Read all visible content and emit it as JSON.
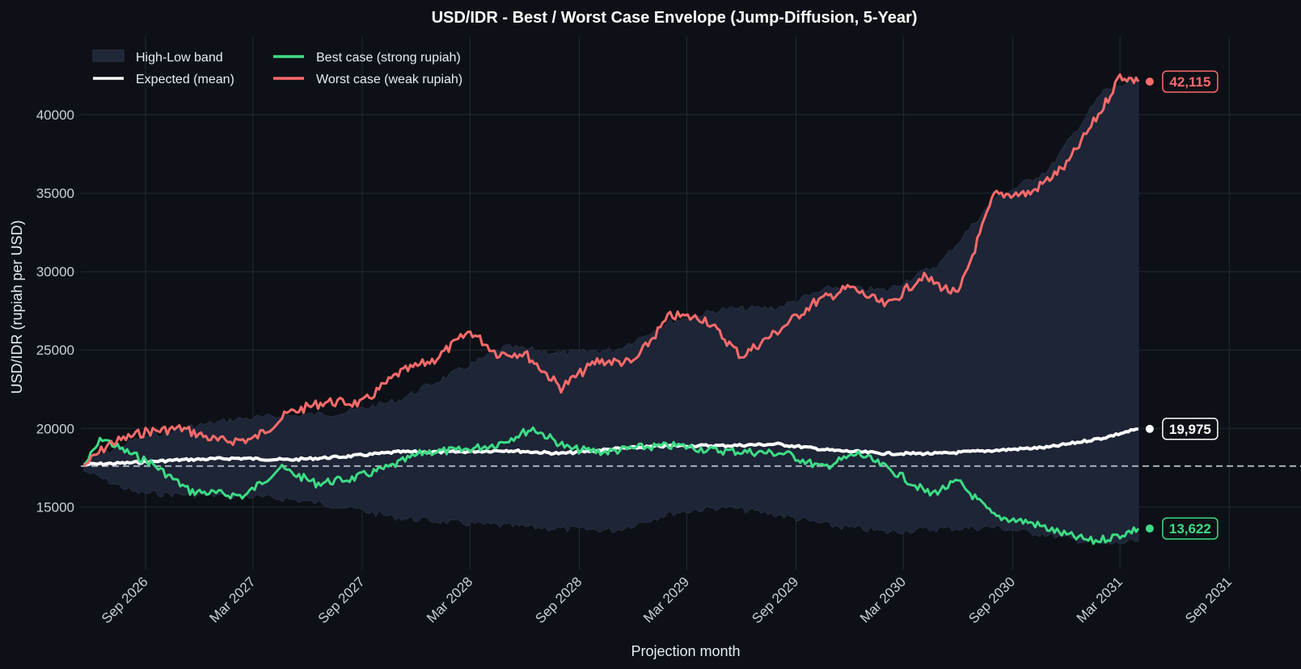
{
  "chart_data": {
    "type": "line",
    "title": "USD/IDR  -  Best / Worst Case Envelope  (Jump-Diffusion, 5-Year)",
    "xlabel": "Projection month",
    "ylabel": "USD/IDR (rupiah per USD)",
    "x_range": [
      "2026-05-15",
      "2031-12-31"
    ],
    "ylim": [
      11000,
      45000
    ],
    "x_ticks": [
      {
        "date": "2026-09-01",
        "label": "Sep 2026"
      },
      {
        "date": "2027-03-01",
        "label": "Mar 2027"
      },
      {
        "date": "2027-09-01",
        "label": "Sep 2027"
      },
      {
        "date": "2028-03-01",
        "label": "Mar 2028"
      },
      {
        "date": "2028-09-01",
        "label": "Sep 2028"
      },
      {
        "date": "2029-03-01",
        "label": "Mar 2029"
      },
      {
        "date": "2029-09-01",
        "label": "Sep 2029"
      },
      {
        "date": "2030-03-01",
        "label": "Mar 2030"
      },
      {
        "date": "2030-09-01",
        "label": "Sep 2030"
      },
      {
        "date": "2031-03-01",
        "label": "Mar 2031"
      },
      {
        "date": "2031-09-01",
        "label": "Sep 2031"
      }
    ],
    "y_ticks": [
      15000,
      20000,
      25000,
      30000,
      35000,
      40000
    ],
    "y_tick_labels": [
      "15000",
      "20000",
      "25000",
      "30000",
      "35000",
      "40000"
    ],
    "grid": true,
    "legend_placement": "top-left",
    "reference_line": {
      "value": 17600,
      "style": "dashed"
    },
    "band": {
      "name": "High-Low band",
      "color": "#1f2738",
      "x": [
        "2026-05-20",
        "2026-08-15",
        "2026-11-01",
        "2027-02-01",
        "2027-05-01",
        "2027-08-01",
        "2027-11-01",
        "2028-02-01",
        "2028-05-01",
        "2028-08-01",
        "2028-11-01",
        "2029-02-01",
        "2029-05-01",
        "2029-08-01",
        "2029-11-01",
        "2030-02-01",
        "2030-05-01",
        "2030-08-01",
        "2030-11-01",
        "2031-02-01",
        "2031-04-01"
      ],
      "high": [
        17800,
        19300,
        20000,
        20600,
        20800,
        21000,
        21800,
        23500,
        25200,
        24800,
        25000,
        26800,
        27600,
        27700,
        29000,
        28800,
        30500,
        34600,
        36500,
        41500,
        42200
      ],
      "low": [
        17300,
        15900,
        15800,
        15700,
        15500,
        15000,
        14300,
        14000,
        13800,
        13600,
        13500,
        14600,
        15000,
        14500,
        13800,
        13400,
        13600,
        13700,
        13200,
        12600,
        12800
      ]
    },
    "series": [
      {
        "name": "Expected (mean)",
        "color": "#ffffff",
        "x": [
          "2026-05-20",
          "2026-08-01",
          "2026-11-01",
          "2027-02-01",
          "2027-05-01",
          "2027-08-01",
          "2027-11-01",
          "2028-02-01",
          "2028-05-01",
          "2028-08-01",
          "2028-11-01",
          "2029-02-01",
          "2029-05-01",
          "2029-08-01",
          "2029-11-01",
          "2030-02-01",
          "2030-05-01",
          "2030-08-01",
          "2030-11-01",
          "2031-02-01",
          "2031-04-01"
        ],
        "values": [
          17700,
          17800,
          18000,
          18100,
          18000,
          18200,
          18500,
          18500,
          18600,
          18400,
          18700,
          18900,
          18900,
          19000,
          18600,
          18400,
          18400,
          18600,
          18800,
          19400,
          19975
        ],
        "end_label": "19,975"
      },
      {
        "name": "Best case (strong rupiah)",
        "color": "#3ddc84",
        "x": [
          "2026-05-20",
          "2026-06-20",
          "2026-07-20",
          "2026-09-10",
          "2026-11-15",
          "2027-02-15",
          "2027-04-15",
          "2027-06-15",
          "2027-08-15",
          "2027-10-15",
          "2027-12-15",
          "2028-02-15",
          "2028-04-15",
          "2028-06-15",
          "2028-08-15",
          "2028-10-15",
          "2028-12-15",
          "2029-02-15",
          "2029-04-15",
          "2029-06-15",
          "2029-08-15",
          "2029-10-15",
          "2029-12-15",
          "2030-02-15",
          "2030-04-15",
          "2030-06-01",
          "2030-08-01",
          "2030-10-01",
          "2030-12-01",
          "2031-01-15",
          "2031-03-01",
          "2031-04-01"
        ],
        "values": [
          17600,
          19400,
          18700,
          17800,
          16000,
          15700,
          17500,
          16500,
          16800,
          17500,
          18500,
          18600,
          19000,
          20000,
          18700,
          18500,
          18800,
          18900,
          18600,
          18500,
          18400,
          17500,
          18400,
          17200,
          15800,
          16600,
          14400,
          14000,
          13200,
          12800,
          13200,
          13622
        ],
        "end_label": "13,622"
      },
      {
        "name": "Worst case (weak rupiah)",
        "color": "#ff6b6b",
        "x": [
          "2026-05-20",
          "2026-07-01",
          "2026-09-01",
          "2026-11-01",
          "2027-01-01",
          "2027-03-01",
          "2027-05-01",
          "2027-07-01",
          "2027-09-01",
          "2027-11-01",
          "2028-01-01",
          "2028-03-01",
          "2028-04-15",
          "2028-06-01",
          "2028-08-01",
          "2028-10-01",
          "2028-12-01",
          "2029-02-01",
          "2029-04-01",
          "2029-06-01",
          "2029-08-01",
          "2029-10-01",
          "2029-12-01",
          "2030-02-01",
          "2030-04-01",
          "2030-06-01",
          "2030-08-01",
          "2030-10-01",
          "2030-12-01",
          "2031-02-01",
          "2031-03-01",
          "2031-04-01"
        ],
        "values": [
          17600,
          19000,
          19800,
          20000,
          19200,
          19300,
          21000,
          21700,
          21600,
          23500,
          24400,
          26200,
          24800,
          24800,
          22600,
          24300,
          24200,
          27200,
          27000,
          24600,
          26200,
          28000,
          29000,
          27800,
          29700,
          28500,
          34900,
          35000,
          36800,
          40500,
          42500,
          42115
        ],
        "end_label": "42,115"
      }
    ],
    "legend": [
      {
        "label": "High-Low band"
      },
      {
        "label": "Expected (mean)"
      },
      {
        "label": "Best case (strong rupiah)"
      },
      {
        "label": "Worst case (weak rupiah)"
      }
    ]
  }
}
